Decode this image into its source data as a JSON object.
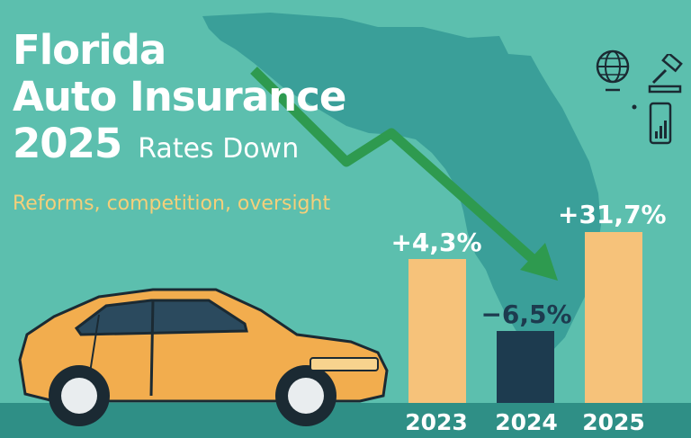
{
  "header": {
    "title_lines": [
      "Florida",
      "Auto Insurance",
      "2025"
    ],
    "subtitle": "Rates Down",
    "tagline": "Reforms, competition, oversight"
  },
  "icons": [
    "globe-icon",
    "gavel-icon",
    "phone-chart-icon",
    "car-illustration",
    "florida-map",
    "trend-down-arrow"
  ],
  "colors": {
    "background": "#5cbfae",
    "map": "#3a9f99",
    "bar_up": "#f6c27a",
    "bar_down": "#1d3b4f",
    "tagline": "#f5cf7a",
    "arrow": "#2e9a4f",
    "ground": "#2f8f86",
    "car_body": "#f2ad4e"
  },
  "chart_data": {
    "type": "bar",
    "categories": [
      "2023",
      "2024",
      "2025"
    ],
    "values": [
      4.3,
      -6.5,
      31.7
    ],
    "value_labels": [
      "+4,3%",
      "−6,5%",
      "+31,7%"
    ],
    "title": "",
    "xlabel": "",
    "ylabel": "",
    "grid": false,
    "bar_colors": [
      "#f6c27a",
      "#1d3b4f",
      "#f6c27a"
    ]
  }
}
